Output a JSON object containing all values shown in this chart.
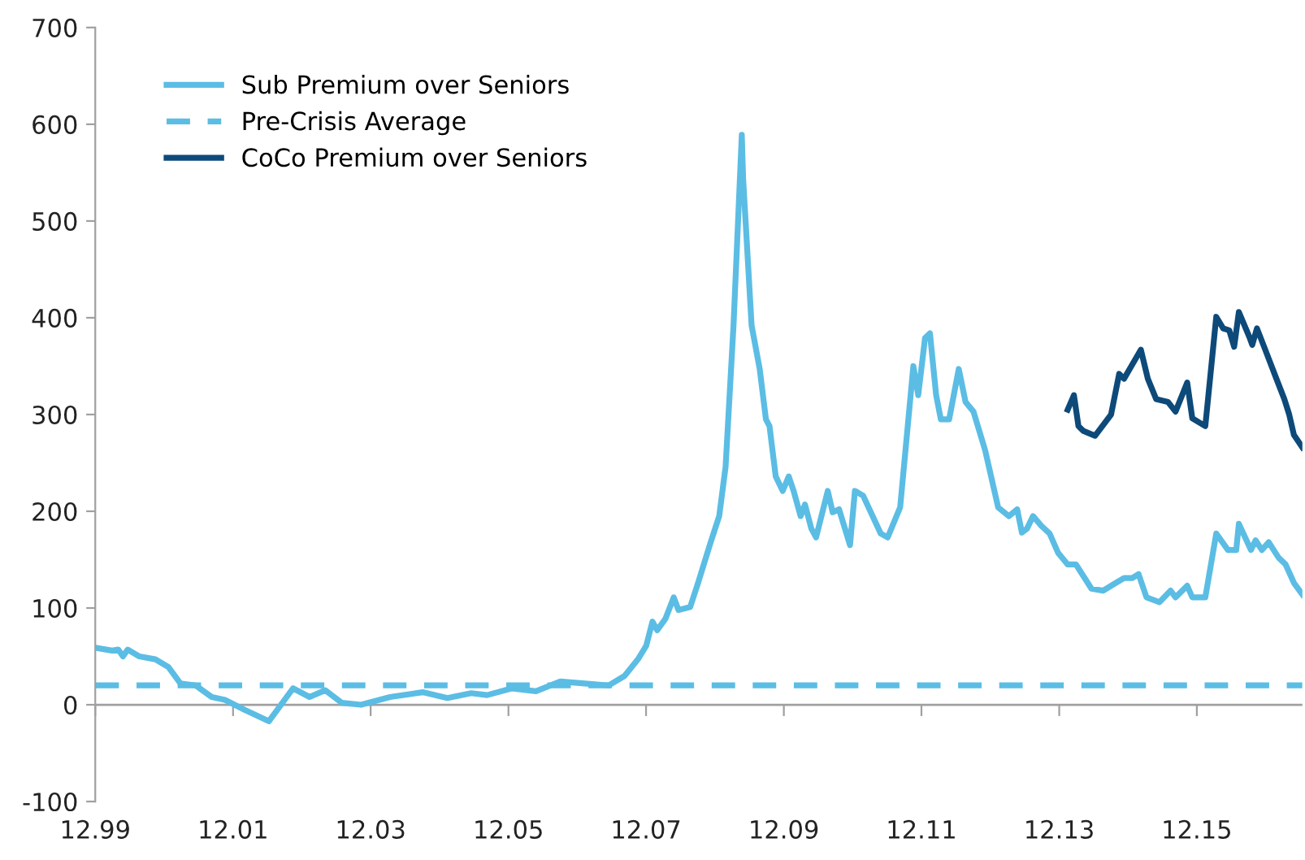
{
  "chart_data": {
    "type": "line",
    "legend": "top left",
    "grid": false,
    "xlim": [
      "1999-12",
      "2017-06-13"
    ],
    "ylim": [
      -100,
      700
    ],
    "xticks": [
      {
        "value": "1999-12",
        "label": "12.99"
      },
      {
        "value": "2001-12",
        "label": "12.01"
      },
      {
        "value": "2003-12",
        "label": "12.03"
      },
      {
        "value": "2005-12",
        "label": "12.05"
      },
      {
        "value": "2007-12",
        "label": "12.07"
      },
      {
        "value": "2009-12",
        "label": "12.09"
      },
      {
        "value": "2011-12",
        "label": "12.11"
      },
      {
        "value": "2013-12",
        "label": "12.13"
      },
      {
        "value": "2015-12",
        "label": "12.15"
      }
    ],
    "yticks": [
      -100,
      0,
      100,
      200,
      300,
      400,
      500,
      600,
      700
    ],
    "ref_lines": [
      {
        "axis": "y",
        "value": 0,
        "color": "#a0a0a0",
        "line_style": "solid"
      }
    ],
    "series": [
      {
        "name": "Sub Premium over Seniors",
        "color": "#5bbde4",
        "line_style": "solid",
        "x": [
          "1999-12-02",
          "2000-02-28",
          "2000-04-01",
          "2000-04-26",
          "2000-05-21",
          "2000-07-22",
          "2000-10-15",
          "2000-12-23",
          "2001-02-25",
          "2001-05-17",
          "2001-08-10",
          "2001-10-19",
          "2002-01-29",
          "2002-06-09",
          "2002-10-15",
          "2003-01-11",
          "2003-04-04",
          "2003-07-01",
          "2003-10-11",
          "2004-03-13",
          "2004-09-02",
          "2005-01-11",
          "2005-05-17",
          "2005-08-10",
          "2005-12-20",
          "2006-04-26",
          "2006-09-02",
          "2007-01-11",
          "2007-05-17",
          "2007-08-10",
          "2007-10-19",
          "2007-12-02",
          "2008-01-04",
          "2008-01-29",
          "2008-03-13",
          "2008-04-26",
          "2008-05-21",
          "2008-07-22",
          "2008-09-02",
          "2008-11-03",
          "2008-12-23",
          "2009-01-26",
          "2009-03-09",
          "2009-04-22",
          "2009-04-29",
          "2009-06-13",
          "2009-07-26",
          "2009-08-28",
          "2009-09-16",
          "2009-10-19",
          "2009-11-25",
          "2009-12-27",
          "2010-01-22",
          "2010-02-28",
          "2010-03-23",
          "2010-04-26",
          "2010-05-21",
          "2010-07-22",
          "2010-08-17",
          "2010-09-20",
          "2010-11-17",
          "2010-12-13",
          "2011-01-26",
          "2011-04-29",
          "2011-06-05",
          "2011-08-10",
          "2011-10-19",
          "2011-11-14",
          "2011-12-20",
          "2012-01-15",
          "2012-02-17",
          "2012-03-13",
          "2012-04-26",
          "2012-06-16",
          "2012-07-22",
          "2012-09-02",
          "2012-11-03",
          "2013-01-11",
          "2013-03-09",
          "2013-04-22",
          "2013-05-17",
          "2013-06-13",
          "2013-07-15",
          "2013-08-28",
          "2013-10-11",
          "2013-11-25",
          "2014-01-15",
          "2014-02-28",
          "2014-05-21",
          "2014-07-22",
          "2014-09-27",
          "2014-11-10",
          "2014-12-23",
          "2015-01-26",
          "2015-03-09",
          "2015-05-17",
          "2015-07-15",
          "2015-08-10",
          "2015-10-11",
          "2015-11-07",
          "2016-01-15",
          "2016-03-13",
          "2016-05-14",
          "2016-06-27",
          "2016-07-11",
          "2016-09-13",
          "2016-10-08",
          "2016-11-10",
          "2016-12-16",
          "2017-02-07",
          "2017-03-16",
          "2017-04-29",
          "2017-06-13"
        ],
        "values": [
          59,
          56,
          57,
          50,
          57,
          50,
          47,
          39,
          22,
          20,
          8,
          5,
          -5,
          -17,
          17,
          8,
          15,
          2,
          0,
          8,
          13,
          7,
          12,
          10,
          17,
          14,
          24,
          22,
          20,
          30,
          47,
          61,
          86,
          77,
          89,
          111,
          98,
          101,
          126,
          165,
          195,
          246,
          392,
          589,
          544,
          392,
          347,
          295,
          288,
          236,
          221,
          236,
          221,
          195,
          207,
          182,
          173,
          221,
          199,
          202,
          165,
          221,
          216,
          177,
          173,
          204,
          350,
          320,
          379,
          384,
          320,
          295,
          295,
          347,
          313,
          303,
          263,
          204,
          195,
          202,
          178,
          182,
          195,
          185,
          177,
          157,
          145,
          145,
          120,
          118,
          126,
          131,
          131,
          135,
          111,
          106,
          118,
          111,
          123,
          111,
          111,
          177,
          160,
          160,
          187,
          160,
          170,
          160,
          168,
          152,
          145,
          126,
          114
        ]
      },
      {
        "name": "Pre-Crisis Average",
        "color": "#5bbde4",
        "line_style": "dashed",
        "x": [
          "1999-12-02",
          "2017-06-13"
        ],
        "values": [
          20,
          20
        ]
      },
      {
        "name": "CoCo Premium over Seniors",
        "color": "#0d4a7a",
        "line_style": "solid",
        "x": [
          "2014-01-15",
          "2014-02-17",
          "2014-03-13",
          "2014-04-08",
          "2014-06-09",
          "2014-09-02",
          "2014-10-15",
          "2014-11-10",
          "2015-02-07",
          "2015-03-16",
          "2015-04-29",
          "2015-07-01",
          "2015-08-10",
          "2015-10-11",
          "2015-11-07",
          "2016-01-15",
          "2016-03-13",
          "2016-04-19",
          "2016-05-21",
          "2016-06-16",
          "2016-07-11",
          "2016-09-05",
          "2016-09-20",
          "2016-10-15",
          "2016-11-28",
          "2017-01-26",
          "2017-03-09",
          "2017-04-04",
          "2017-04-29",
          "2017-06-13"
        ],
        "values": [
          305,
          320,
          288,
          283,
          278,
          300,
          342,
          337,
          367,
          337,
          316,
          313,
          303,
          333,
          296,
          288,
          401,
          389,
          387,
          370,
          406,
          380,
          372,
          389,
          367,
          337,
          316,
          300,
          279,
          266
        ]
      }
    ]
  }
}
